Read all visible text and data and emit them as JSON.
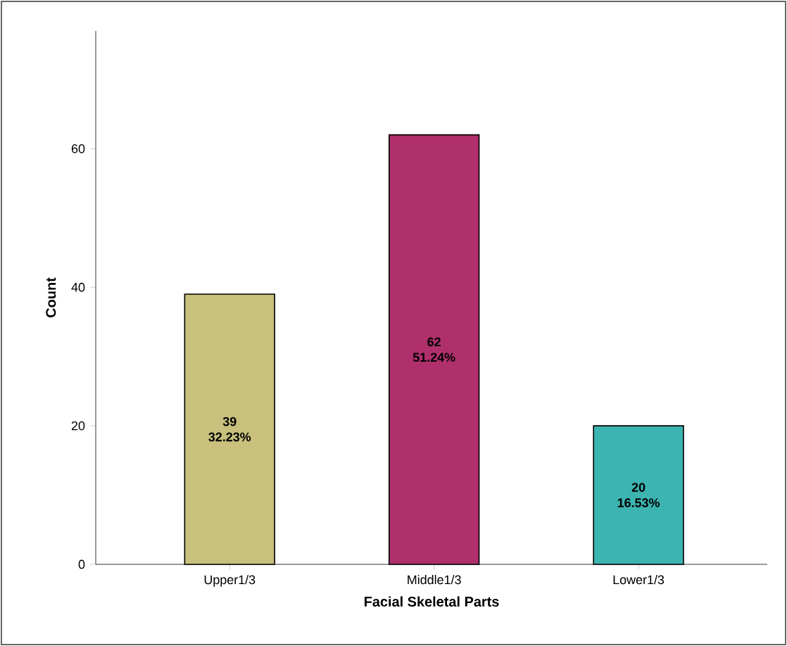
{
  "chart_data": {
    "type": "bar",
    "xlabel": "Facial  Skeletal Parts",
    "ylabel": "Count",
    "categories": [
      "Upper1/3",
      "Middle1/3",
      "Lower1/3"
    ],
    "values": [
      39,
      62,
      20
    ],
    "colors": [
      "#c8c07c",
      "#b0306c",
      "#3cb4b0"
    ],
    "value_labels": [
      "39 32.23%",
      "62 51.24%",
      "20 16.53%"
    ],
    "ylim": [
      0,
      77
    ],
    "yticks": [
      0,
      20,
      40,
      60
    ],
    "grid": false
  }
}
